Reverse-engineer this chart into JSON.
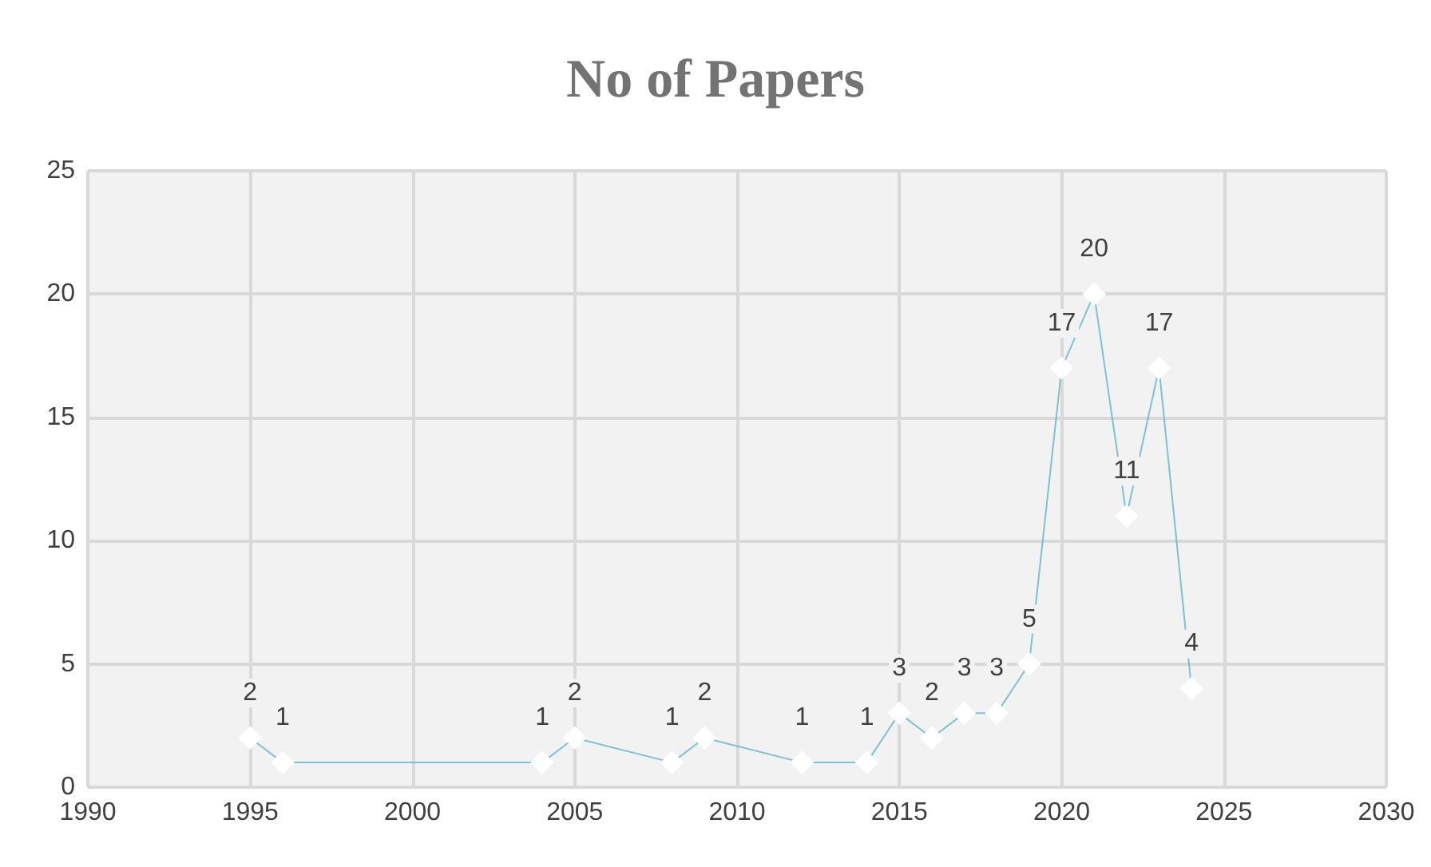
{
  "chart_data": {
    "type": "line",
    "title": "No of Papers",
    "x": [
      1995,
      1996,
      2004,
      2005,
      2008,
      2009,
      2012,
      2014,
      2015,
      2016,
      2017,
      2018,
      2019,
      2020,
      2021,
      2022,
      2023,
      2024
    ],
    "series": [
      {
        "color": "#4bacc6",
        "values": [
          2,
          1,
          1,
          2,
          1,
          2,
          1,
          1,
          3,
          2,
          3,
          3,
          5,
          17,
          20,
          11,
          17,
          4
        ]
      }
    ],
    "xlim": [
      1990,
      2030
    ],
    "xticks": [
      1990,
      1995,
      2000,
      2005,
      2010,
      2015,
      2020,
      2025,
      2030
    ],
    "ylim": [
      0,
      25
    ],
    "yticks": [
      0,
      5,
      10,
      15,
      20,
      25
    ],
    "grid": true,
    "marker": "diamond",
    "line_style": "solid",
    "data_labels": true
  }
}
